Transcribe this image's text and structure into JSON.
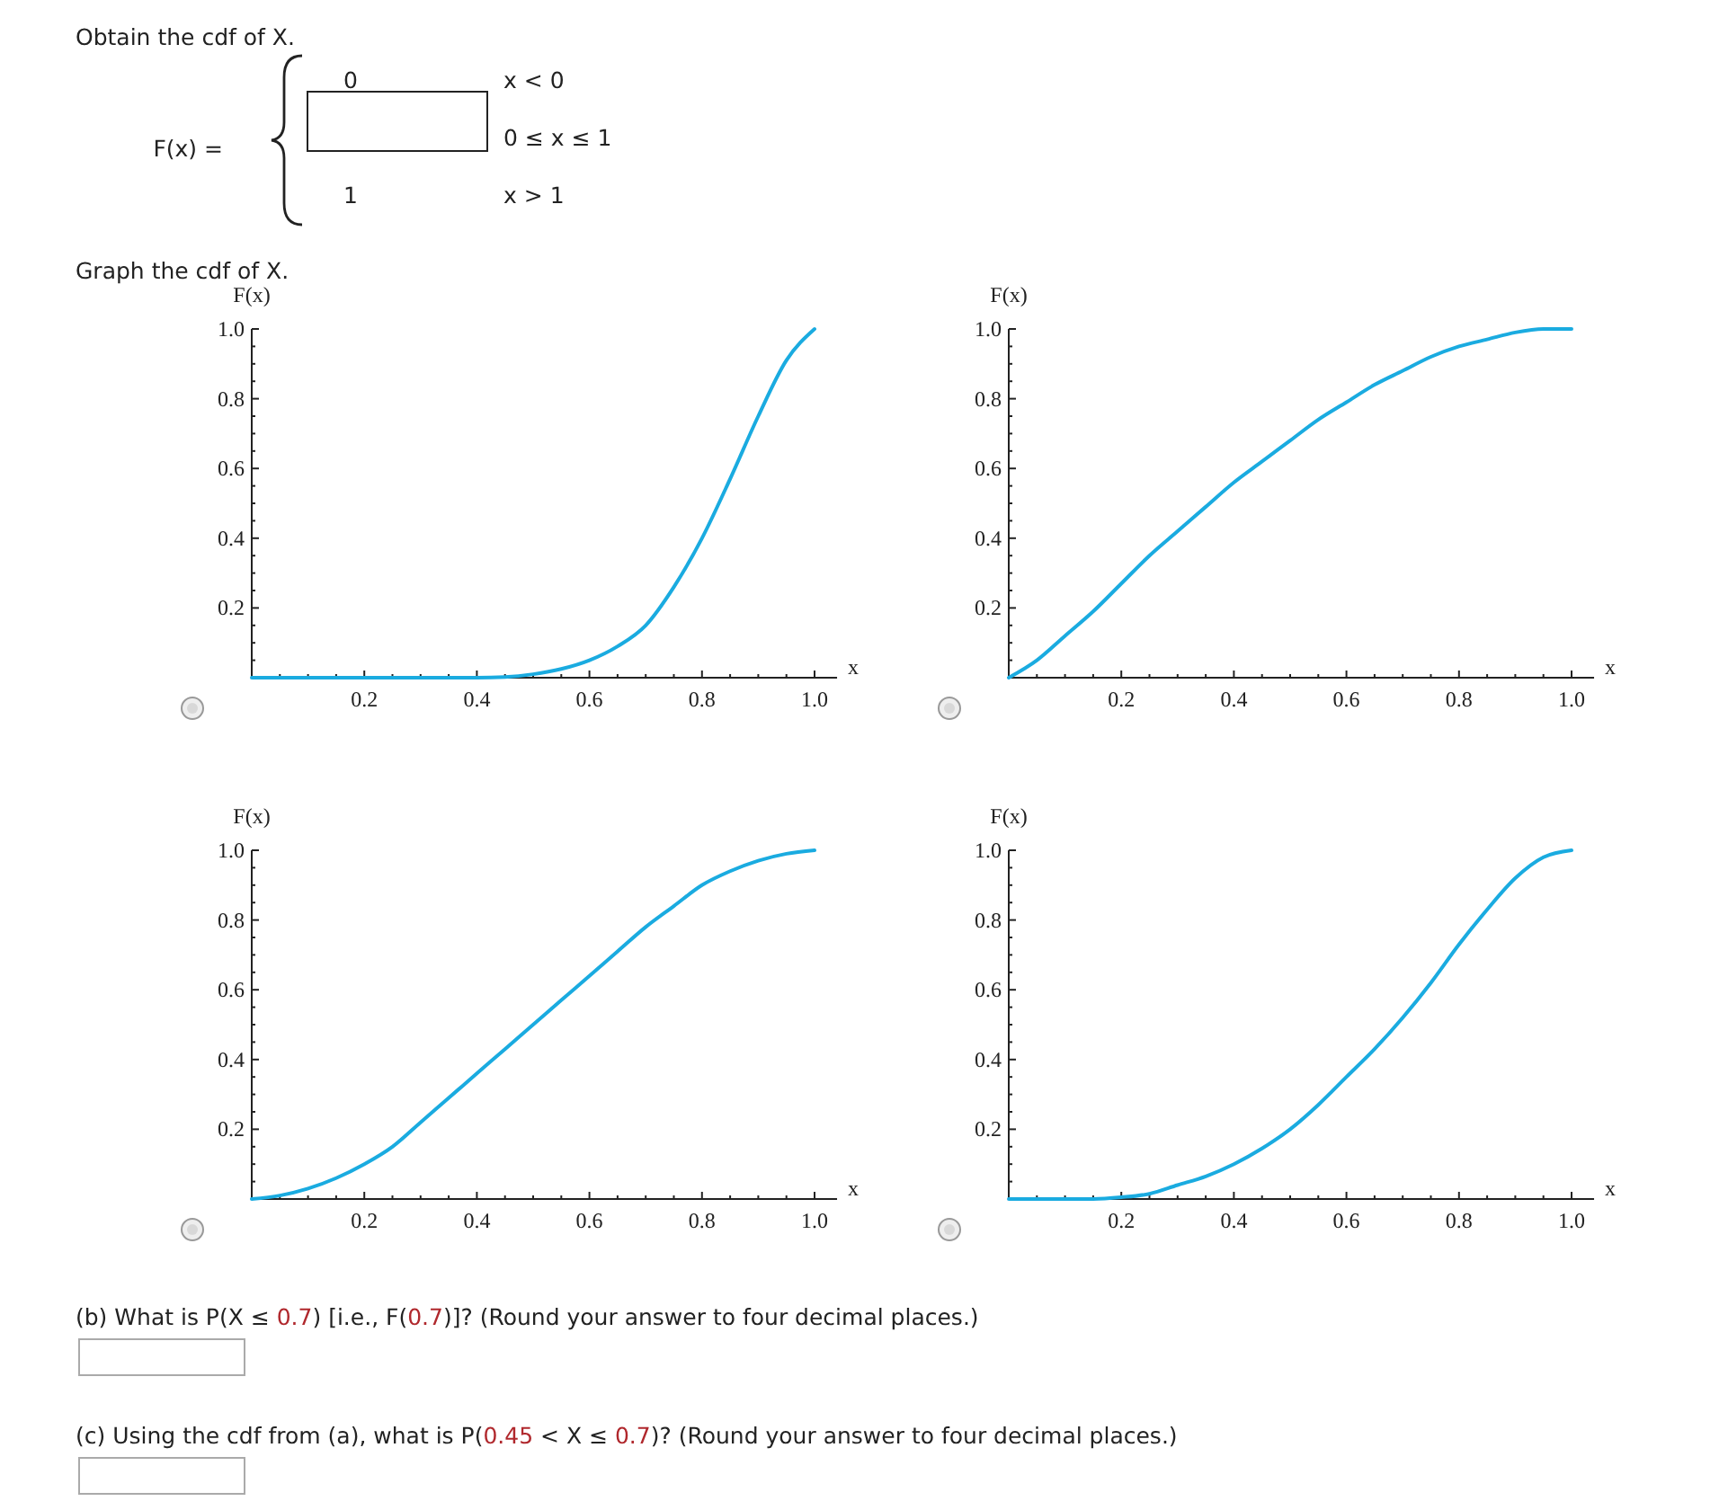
{
  "chart_data": [
    {
      "type": "other",
      "annotations": [
        "Obtain the cdf of X.",
        "F(x) =",
        "0",
        "x < 0",
        "0 ≤ x ≤ 1",
        "1",
        "x > 1",
        "Graph the cdf of X.",
        "(b) What is P(X ≤ 0.7) [i.e., F(0.7)]? (Round your answer to four decimal places.)",
        "(c) Using the cdf from (a), what is P(0.45 < X ≤ 0.7)? (Round your answer to four decimal places.)"
      ]
    },
    {
      "type": "line",
      "xlabel": "x",
      "ylabel": "F(x)",
      "xlim": [
        0,
        1.04
      ],
      "ylim": [
        0,
        1
      ],
      "xticks": [
        {
          "value": 0.05,
          "label": null
        },
        {
          "value": 0.1,
          "label": null
        },
        {
          "value": 0.15,
          "label": null
        },
        0.2,
        {
          "value": 0.25,
          "label": null
        },
        {
          "value": 0.3,
          "label": null
        },
        {
          "value": 0.35,
          "label": null
        },
        0.4,
        {
          "value": 0.45,
          "label": null
        },
        {
          "value": 0.5,
          "label": null
        },
        {
          "value": 0.55,
          "label": null
        },
        0.6,
        {
          "value": 0.65,
          "label": null
        },
        {
          "value": 0.7,
          "label": null
        },
        {
          "value": 0.75,
          "label": null
        },
        0.8,
        {
          "value": 0.85,
          "label": null
        },
        {
          "value": 0.9,
          "label": null
        },
        {
          "value": 0.95,
          "label": null
        },
        {
          "value": 1,
          "label": "1.0"
        }
      ],
      "yticks": [
        {
          "value": 0.05,
          "label": null
        },
        {
          "value": 0.1,
          "label": null
        },
        {
          "value": 0.15,
          "label": null
        },
        0.2,
        {
          "value": 0.25,
          "label": null
        },
        {
          "value": 0.3,
          "label": null
        },
        {
          "value": 0.35,
          "label": null
        },
        0.4,
        {
          "value": 0.45,
          "label": null
        },
        {
          "value": 0.5,
          "label": null
        },
        {
          "value": 0.55,
          "label": null
        },
        0.6,
        {
          "value": 0.65,
          "label": null
        },
        {
          "value": 0.7,
          "label": null
        },
        {
          "value": 0.75,
          "label": null
        },
        0.8,
        {
          "value": 0.85,
          "label": null
        },
        {
          "value": 0.9,
          "label": null
        },
        {
          "value": 0.95,
          "label": null
        },
        {
          "value": 1,
          "label": "1.0"
        }
      ],
      "x": [
        0,
        0.05,
        0.1,
        0.15,
        0.2,
        0.25,
        0.3,
        0.35,
        0.4,
        0.45,
        0.5,
        0.55,
        0.6,
        0.65,
        0.7,
        0.75,
        0.8,
        0.85,
        0.9,
        0.95,
        1
      ],
      "series": [
        {
          "color": "#1aabe0",
          "values": [
            0,
            0,
            0,
            0,
            0,
            0,
            0,
            0,
            0,
            0.002,
            0.01,
            0.025,
            0.05,
            0.09,
            0.15,
            0.26,
            0.4,
            0.57,
            0.75,
            0.91,
            1
          ]
        }
      ]
    },
    {
      "type": "line",
      "xlabel": "x",
      "ylabel": "F(x)",
      "xlim": [
        0,
        1.04
      ],
      "ylim": [
        0,
        1
      ],
      "xticks": [
        {
          "value": 0.05,
          "label": null
        },
        {
          "value": 0.1,
          "label": null
        },
        {
          "value": 0.15,
          "label": null
        },
        0.2,
        {
          "value": 0.25,
          "label": null
        },
        {
          "value": 0.3,
          "label": null
        },
        {
          "value": 0.35,
          "label": null
        },
        0.4,
        {
          "value": 0.45,
          "label": null
        },
        {
          "value": 0.5,
          "label": null
        },
        {
          "value": 0.55,
          "label": null
        },
        0.6,
        {
          "value": 0.65,
          "label": null
        },
        {
          "value": 0.7,
          "label": null
        },
        {
          "value": 0.75,
          "label": null
        },
        0.8,
        {
          "value": 0.85,
          "label": null
        },
        {
          "value": 0.9,
          "label": null
        },
        {
          "value": 0.95,
          "label": null
        },
        {
          "value": 1,
          "label": "1.0"
        }
      ],
      "yticks": [
        {
          "value": 0.05,
          "label": null
        },
        {
          "value": 0.1,
          "label": null
        },
        {
          "value": 0.15,
          "label": null
        },
        0.2,
        {
          "value": 0.25,
          "label": null
        },
        {
          "value": 0.3,
          "label": null
        },
        {
          "value": 0.35,
          "label": null
        },
        0.4,
        {
          "value": 0.45,
          "label": null
        },
        {
          "value": 0.5,
          "label": null
        },
        {
          "value": 0.55,
          "label": null
        },
        0.6,
        {
          "value": 0.65,
          "label": null
        },
        {
          "value": 0.7,
          "label": null
        },
        {
          "value": 0.75,
          "label": null
        },
        0.8,
        {
          "value": 0.85,
          "label": null
        },
        {
          "value": 0.9,
          "label": null
        },
        {
          "value": 0.95,
          "label": null
        },
        {
          "value": 1,
          "label": "1.0"
        }
      ],
      "x": [
        0,
        0.05,
        0.1,
        0.15,
        0.2,
        0.25,
        0.3,
        0.35,
        0.4,
        0.45,
        0.5,
        0.55,
        0.6,
        0.65,
        0.7,
        0.75,
        0.8,
        0.85,
        0.9,
        0.95,
        1
      ],
      "series": [
        {
          "color": "#1aabe0",
          "values": [
            0,
            0.05,
            0.12,
            0.19,
            0.27,
            0.35,
            0.42,
            0.49,
            0.56,
            0.62,
            0.68,
            0.74,
            0.79,
            0.84,
            0.88,
            0.92,
            0.95,
            0.97,
            0.99,
            1,
            1
          ]
        }
      ]
    },
    {
      "type": "line",
      "xlabel": "x",
      "ylabel": "F(x)",
      "xlim": [
        0,
        1.04
      ],
      "ylim": [
        0,
        1
      ],
      "xticks": [
        {
          "value": 0.05,
          "label": null
        },
        {
          "value": 0.1,
          "label": null
        },
        {
          "value": 0.15,
          "label": null
        },
        0.2,
        {
          "value": 0.25,
          "label": null
        },
        {
          "value": 0.3,
          "label": null
        },
        {
          "value": 0.35,
          "label": null
        },
        0.4,
        {
          "value": 0.45,
          "label": null
        },
        {
          "value": 0.5,
          "label": null
        },
        {
          "value": 0.55,
          "label": null
        },
        0.6,
        {
          "value": 0.65,
          "label": null
        },
        {
          "value": 0.7,
          "label": null
        },
        {
          "value": 0.75,
          "label": null
        },
        0.8,
        {
          "value": 0.85,
          "label": null
        },
        {
          "value": 0.9,
          "label": null
        },
        {
          "value": 0.95,
          "label": null
        },
        {
          "value": 1,
          "label": "1.0"
        }
      ],
      "yticks": [
        {
          "value": 0.05,
          "label": null
        },
        {
          "value": 0.1,
          "label": null
        },
        {
          "value": 0.15,
          "label": null
        },
        0.2,
        {
          "value": 0.25,
          "label": null
        },
        {
          "value": 0.3,
          "label": null
        },
        {
          "value": 0.35,
          "label": null
        },
        0.4,
        {
          "value": 0.45,
          "label": null
        },
        {
          "value": 0.5,
          "label": null
        },
        {
          "value": 0.55,
          "label": null
        },
        0.6,
        {
          "value": 0.65,
          "label": null
        },
        {
          "value": 0.7,
          "label": null
        },
        {
          "value": 0.75,
          "label": null
        },
        0.8,
        {
          "value": 0.85,
          "label": null
        },
        {
          "value": 0.9,
          "label": null
        },
        {
          "value": 0.95,
          "label": null
        },
        {
          "value": 1,
          "label": "1.0"
        }
      ],
      "x": [
        0,
        0.05,
        0.1,
        0.15,
        0.2,
        0.25,
        0.3,
        0.35,
        0.4,
        0.45,
        0.5,
        0.55,
        0.6,
        0.65,
        0.7,
        0.75,
        0.8,
        0.85,
        0.9,
        0.95,
        1
      ],
      "series": [
        {
          "color": "#1aabe0",
          "values": [
            0,
            0.01,
            0.03,
            0.06,
            0.1,
            0.15,
            0.22,
            0.29,
            0.36,
            0.43,
            0.5,
            0.57,
            0.64,
            0.71,
            0.78,
            0.84,
            0.9,
            0.94,
            0.97,
            0.99,
            1
          ]
        }
      ]
    },
    {
      "type": "line",
      "xlabel": "x",
      "ylabel": "F(x)",
      "xlim": [
        0,
        1.04
      ],
      "ylim": [
        0,
        1
      ],
      "xticks": [
        {
          "value": 0.05,
          "label": null
        },
        {
          "value": 0.1,
          "label": null
        },
        {
          "value": 0.15,
          "label": null
        },
        0.2,
        {
          "value": 0.25,
          "label": null
        },
        {
          "value": 0.3,
          "label": null
        },
        {
          "value": 0.35,
          "label": null
        },
        0.4,
        {
          "value": 0.45,
          "label": null
        },
        {
          "value": 0.5,
          "label": null
        },
        {
          "value": 0.55,
          "label": null
        },
        0.6,
        {
          "value": 0.65,
          "label": null
        },
        {
          "value": 0.7,
          "label": null
        },
        {
          "value": 0.75,
          "label": null
        },
        0.8,
        {
          "value": 0.85,
          "label": null
        },
        {
          "value": 0.9,
          "label": null
        },
        {
          "value": 0.95,
          "label": null
        },
        {
          "value": 1,
          "label": "1.0"
        }
      ],
      "yticks": [
        {
          "value": 0.05,
          "label": null
        },
        {
          "value": 0.1,
          "label": null
        },
        {
          "value": 0.15,
          "label": null
        },
        0.2,
        {
          "value": 0.25,
          "label": null
        },
        {
          "value": 0.3,
          "label": null
        },
        {
          "value": 0.35,
          "label": null
        },
        0.4,
        {
          "value": 0.45,
          "label": null
        },
        {
          "value": 0.5,
          "label": null
        },
        {
          "value": 0.55,
          "label": null
        },
        0.6,
        {
          "value": 0.65,
          "label": null
        },
        {
          "value": 0.7,
          "label": null
        },
        {
          "value": 0.75,
          "label": null
        },
        0.8,
        {
          "value": 0.85,
          "label": null
        },
        {
          "value": 0.9,
          "label": null
        },
        {
          "value": 0.95,
          "label": null
        },
        {
          "value": 1,
          "label": "1.0"
        }
      ],
      "x": [
        0,
        0.05,
        0.1,
        0.15,
        0.2,
        0.25,
        0.3,
        0.35,
        0.4,
        0.45,
        0.5,
        0.55,
        0.6,
        0.65,
        0.7,
        0.75,
        0.8,
        0.85,
        0.9,
        0.95,
        1
      ],
      "series": [
        {
          "color": "#1aabe0",
          "values": [
            0,
            0,
            0,
            0,
            0.005,
            0.015,
            0.04,
            0.065,
            0.1,
            0.145,
            0.2,
            0.27,
            0.35,
            0.43,
            0.52,
            0.62,
            0.73,
            0.83,
            0.92,
            0.98,
            1
          ]
        }
      ]
    }
  ]
}
